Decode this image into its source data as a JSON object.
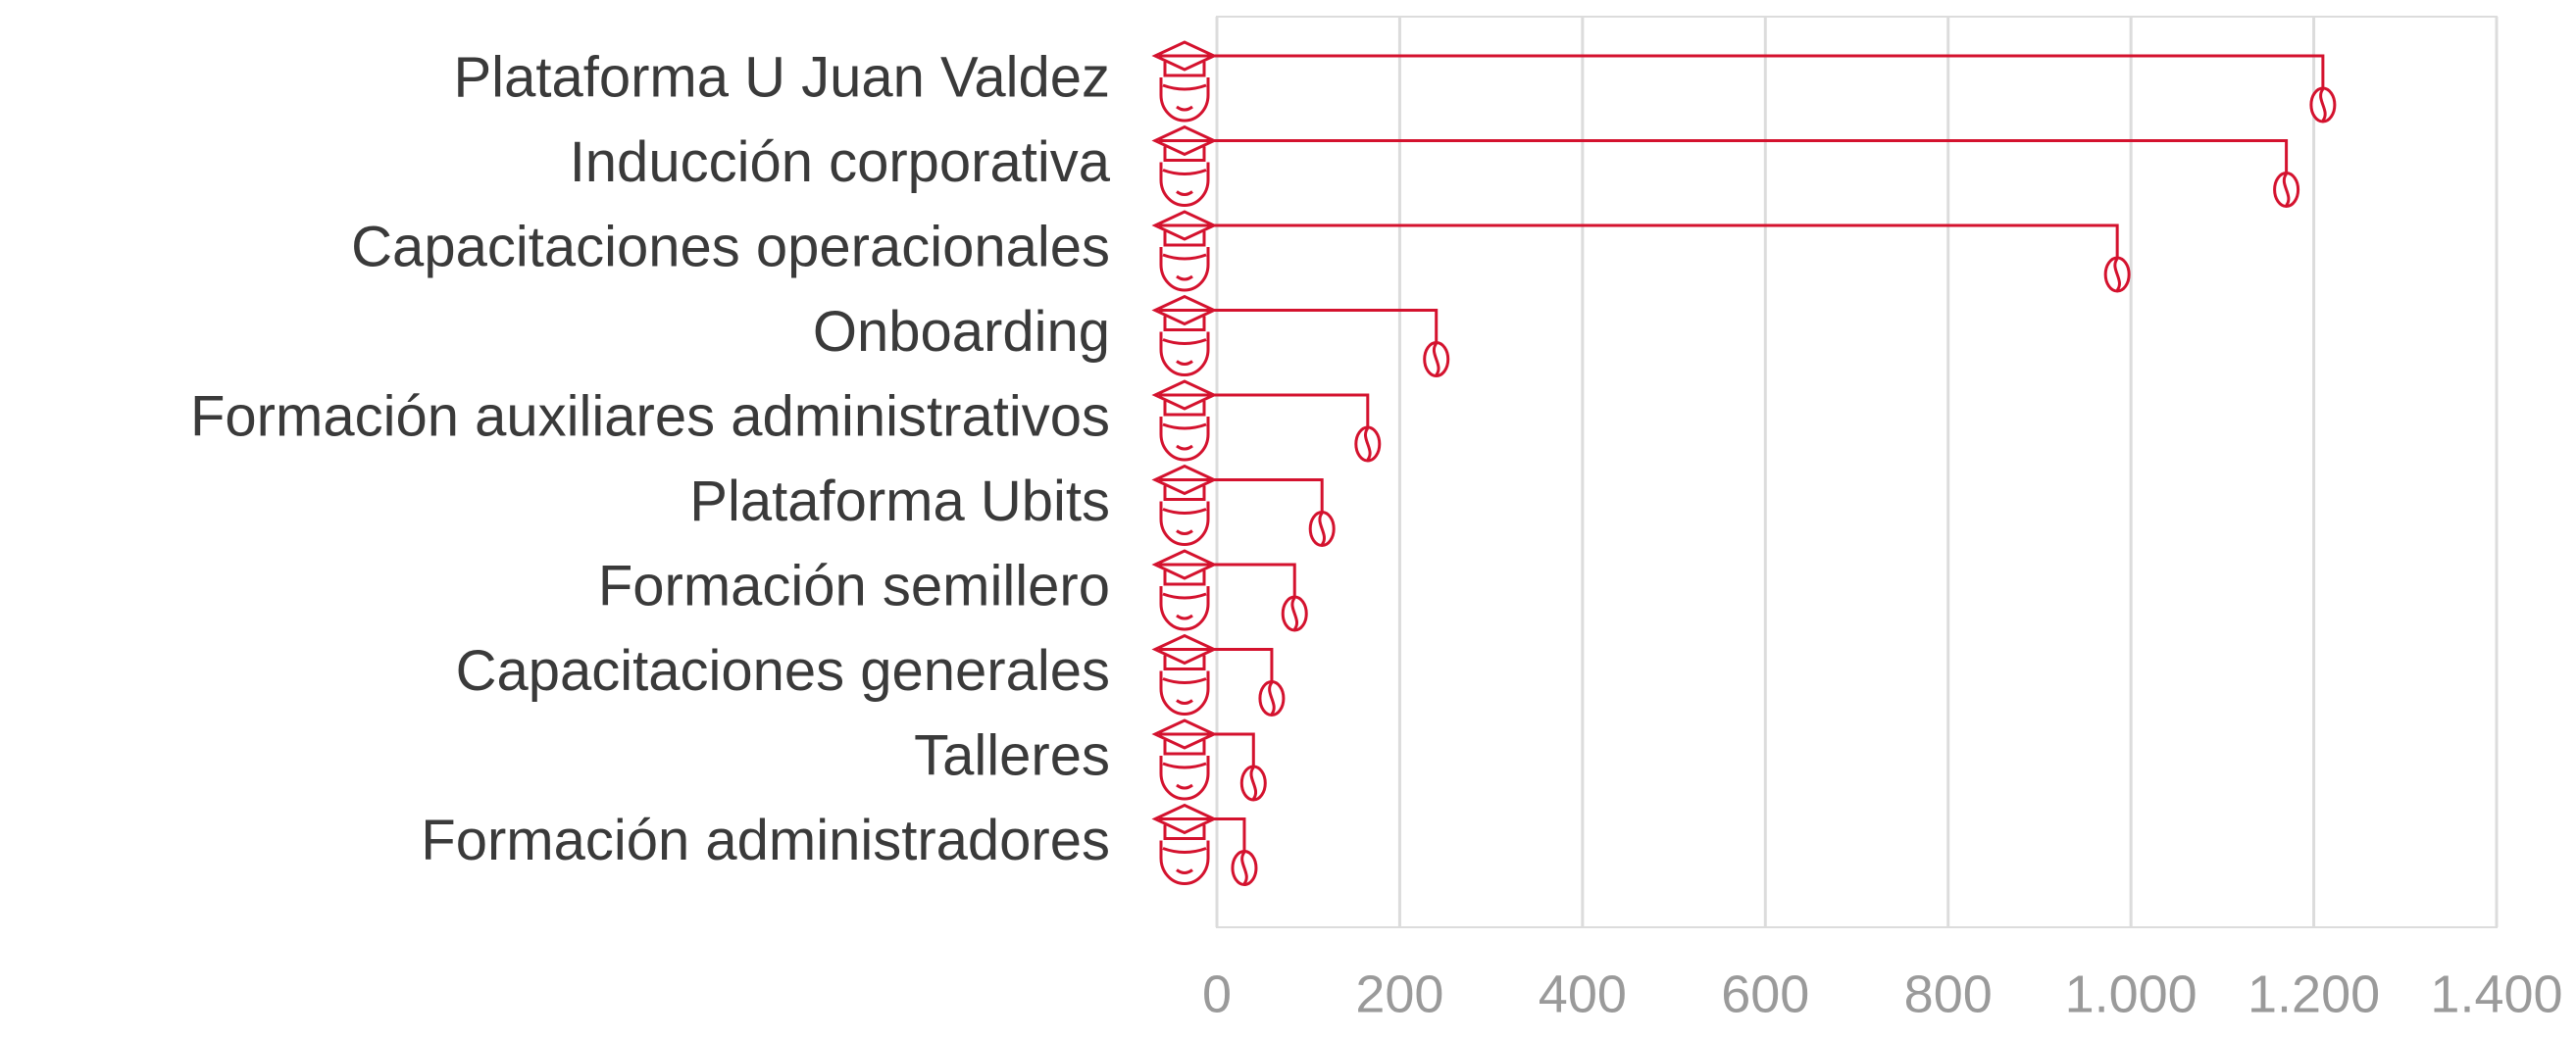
{
  "chart_data": {
    "type": "bar",
    "orientation": "horizontal",
    "categories": [
      "Plataforma U Juan Valdez",
      "Inducción corporativa",
      "Capacitaciones operacionales",
      "Onboarding",
      "Formación auxiliares administrativos",
      "Plataforma Ubits",
      "Formación semillero",
      "Capacitaciones generales",
      "Talleres",
      "Formación administradores"
    ],
    "values": [
      1210,
      1170,
      985,
      240,
      165,
      115,
      85,
      60,
      40,
      30
    ],
    "color": "#d4122e",
    "xlim": [
      0,
      1400
    ],
    "xticks": [
      0,
      200,
      400,
      600,
      800,
      {
        "value": 1000,
        "label": "1.000"
      },
      {
        "value": 1200,
        "label": "1.200"
      },
      {
        "value": 1400,
        "label": "1.400"
      }
    ],
    "grid": true
  }
}
